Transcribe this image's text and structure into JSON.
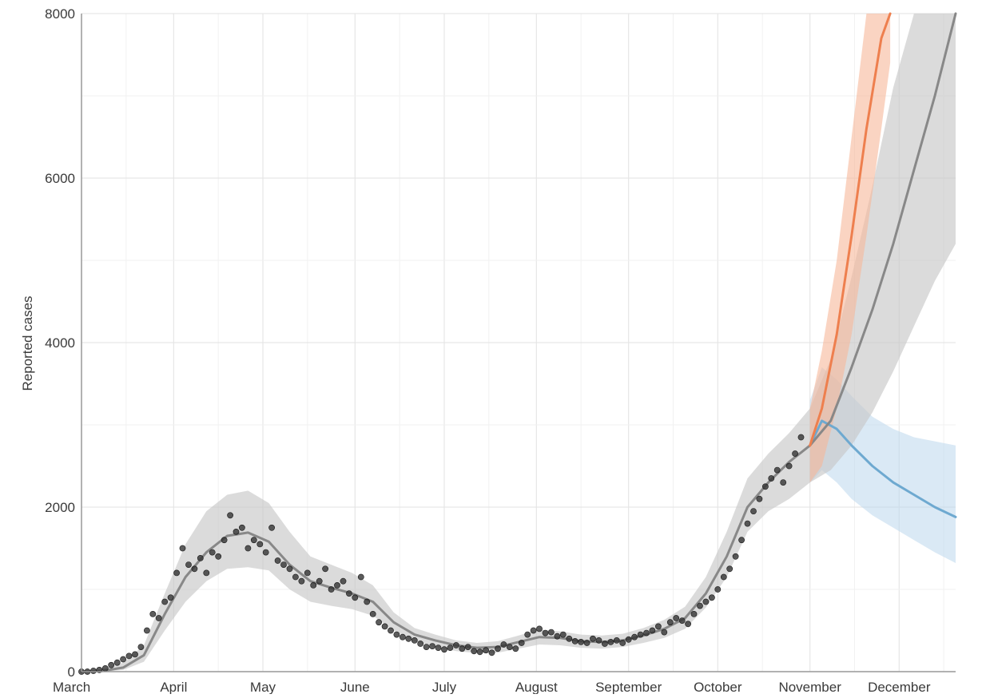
{
  "chart_data": {
    "type": "line",
    "title": "",
    "xlabel": "",
    "ylabel": "Reported cases",
    "ylim": [
      0,
      8000
    ],
    "xlim": [
      "2020-03-01",
      "2020-12-20"
    ],
    "grid": true,
    "legend": "none",
    "x_ticks": [
      "March",
      "April",
      "May",
      "June",
      "July",
      "August",
      "September",
      "October",
      "November",
      "December"
    ],
    "y_ticks": [
      "0",
      "2000",
      "4000",
      "6000",
      "8000"
    ],
    "colors": {
      "observed_points": "#333333",
      "fit_line": "#888888",
      "fit_band": "#c8c8c8",
      "high_scenario": "#ee7f4e",
      "high_band": "#f6b89a",
      "low_scenario": "#6ea9d0",
      "low_band": "#bcd7ec",
      "grid": "#e6e6e6",
      "axis": "#9a9a9a"
    },
    "series": [
      {
        "role": "fit",
        "x": [
          "2020-03-01",
          "2020-03-08",
          "2020-03-15",
          "2020-03-22",
          "2020-03-29",
          "2020-04-05",
          "2020-04-12",
          "2020-04-19",
          "2020-04-26",
          "2020-05-03",
          "2020-05-10",
          "2020-05-17",
          "2020-05-24",
          "2020-05-31",
          "2020-06-07",
          "2020-06-14",
          "2020-06-21",
          "2020-06-28",
          "2020-07-05",
          "2020-07-12",
          "2020-07-19",
          "2020-07-26",
          "2020-08-02",
          "2020-08-09",
          "2020-08-16",
          "2020-08-23",
          "2020-08-30",
          "2020-09-06",
          "2020-09-13",
          "2020-09-20",
          "2020-09-27",
          "2020-10-04",
          "2020-10-11",
          "2020-10-18",
          "2020-10-25",
          "2020-11-01",
          "2020-11-08",
          "2020-11-15",
          "2020-11-22",
          "2020-11-29",
          "2020-12-06",
          "2020-12-13",
          "2020-12-20"
        ],
        "y": [
          0,
          8,
          50,
          200,
          700,
          1150,
          1450,
          1650,
          1690,
          1580,
          1300,
          1100,
          1020,
          950,
          850,
          600,
          450,
          380,
          320,
          290,
          300,
          360,
          420,
          410,
          370,
          360,
          380,
          440,
          520,
          650,
          950,
          1400,
          2000,
          2300,
          2550,
          2750,
          3050,
          3700,
          4400,
          5200,
          6100,
          7000,
          8000
        ],
        "lower": [
          0,
          0,
          20,
          120,
          500,
          850,
          1100,
          1250,
          1270,
          1230,
          1000,
          850,
          800,
          760,
          680,
          500,
          370,
          300,
          250,
          225,
          230,
          280,
          330,
          320,
          290,
          280,
          300,
          350,
          410,
          520,
          780,
          1150,
          1700,
          1950,
          2100,
          2300,
          2450,
          2750,
          3150,
          3650,
          4200,
          4750,
          5200
        ],
        "upper": [
          10,
          30,
          110,
          320,
          950,
          1550,
          1950,
          2150,
          2200,
          2050,
          1700,
          1400,
          1300,
          1200,
          1050,
          720,
          530,
          450,
          380,
          350,
          370,
          440,
          510,
          490,
          450,
          440,
          460,
          530,
          630,
          790,
          1150,
          1700,
          2350,
          2650,
          2900,
          3200,
          3800,
          4800,
          5900,
          7100,
          8000,
          8000,
          8000
        ]
      },
      {
        "role": "scenario-high",
        "x": [
          "2020-11-01",
          "2020-11-05",
          "2020-11-10",
          "2020-11-15",
          "2020-11-20",
          "2020-11-25",
          "2020-11-28"
        ],
        "y": [
          2750,
          3200,
          4100,
          5300,
          6600,
          7700,
          8000
        ],
        "lower": [
          2300,
          2500,
          3200,
          4100,
          5300,
          6600,
          7400
        ],
        "upper": [
          3200,
          3900,
          5000,
          6500,
          8000,
          8000,
          8000
        ]
      },
      {
        "role": "scenario-low",
        "x": [
          "2020-11-01",
          "2020-11-05",
          "2020-11-10",
          "2020-11-15",
          "2020-11-22",
          "2020-11-29",
          "2020-12-06",
          "2020-12-13",
          "2020-12-20"
        ],
        "y": [
          2750,
          3050,
          2950,
          2750,
          2500,
          2300,
          2150,
          2000,
          1880
        ],
        "lower": [
          2300,
          2450,
          2300,
          2100,
          1900,
          1750,
          1600,
          1450,
          1320
        ],
        "upper": [
          3300,
          3700,
          3550,
          3350,
          3100,
          2950,
          2850,
          2800,
          2750
        ]
      }
    ],
    "points": {
      "x": [
        "2020-03-01",
        "2020-03-03",
        "2020-03-05",
        "2020-03-07",
        "2020-03-09",
        "2020-03-11",
        "2020-03-13",
        "2020-03-15",
        "2020-03-17",
        "2020-03-19",
        "2020-03-21",
        "2020-03-23",
        "2020-03-25",
        "2020-03-27",
        "2020-03-29",
        "2020-03-31",
        "2020-04-02",
        "2020-04-04",
        "2020-04-06",
        "2020-04-08",
        "2020-04-10",
        "2020-04-12",
        "2020-04-14",
        "2020-04-16",
        "2020-04-18",
        "2020-04-20",
        "2020-04-22",
        "2020-04-24",
        "2020-04-26",
        "2020-04-28",
        "2020-04-30",
        "2020-05-02",
        "2020-05-04",
        "2020-05-06",
        "2020-05-08",
        "2020-05-10",
        "2020-05-12",
        "2020-05-14",
        "2020-05-16",
        "2020-05-18",
        "2020-05-20",
        "2020-05-22",
        "2020-05-24",
        "2020-05-26",
        "2020-05-28",
        "2020-05-30",
        "2020-06-01",
        "2020-06-03",
        "2020-06-05",
        "2020-06-07",
        "2020-06-09",
        "2020-06-11",
        "2020-06-13",
        "2020-06-15",
        "2020-06-17",
        "2020-06-19",
        "2020-06-21",
        "2020-06-23",
        "2020-06-25",
        "2020-06-27",
        "2020-06-29",
        "2020-07-01",
        "2020-07-03",
        "2020-07-05",
        "2020-07-07",
        "2020-07-09",
        "2020-07-11",
        "2020-07-13",
        "2020-07-15",
        "2020-07-17",
        "2020-07-19",
        "2020-07-21",
        "2020-07-23",
        "2020-07-25",
        "2020-07-27",
        "2020-07-29",
        "2020-07-31",
        "2020-08-02",
        "2020-08-04",
        "2020-08-06",
        "2020-08-08",
        "2020-08-10",
        "2020-08-12",
        "2020-08-14",
        "2020-08-16",
        "2020-08-18",
        "2020-08-20",
        "2020-08-22",
        "2020-08-24",
        "2020-08-26",
        "2020-08-28",
        "2020-08-30",
        "2020-09-01",
        "2020-09-03",
        "2020-09-05",
        "2020-09-07",
        "2020-09-09",
        "2020-09-11",
        "2020-09-13",
        "2020-09-15",
        "2020-09-17",
        "2020-09-19",
        "2020-09-21",
        "2020-09-23",
        "2020-09-25",
        "2020-09-27",
        "2020-09-29",
        "2020-10-01",
        "2020-10-03",
        "2020-10-05",
        "2020-10-07",
        "2020-10-09",
        "2020-10-11",
        "2020-10-13",
        "2020-10-15",
        "2020-10-17",
        "2020-10-19",
        "2020-10-21",
        "2020-10-23",
        "2020-10-25",
        "2020-10-27",
        "2020-10-29"
      ],
      "y": [
        0,
        0,
        10,
        20,
        40,
        80,
        110,
        150,
        190,
        210,
        300,
        500,
        700,
        650,
        850,
        900,
        1200,
        1500,
        1300,
        1250,
        1380,
        1200,
        1450,
        1400,
        1600,
        1900,
        1700,
        1750,
        1500,
        1600,
        1550,
        1450,
        1750,
        1350,
        1300,
        1250,
        1150,
        1100,
        1200,
        1050,
        1100,
        1250,
        1000,
        1050,
        1100,
        950,
        900,
        1150,
        850,
        700,
        600,
        550,
        500,
        450,
        420,
        400,
        380,
        340,
        300,
        310,
        290,
        270,
        290,
        320,
        280,
        300,
        250,
        240,
        260,
        230,
        280,
        330,
        300,
        280,
        350,
        450,
        500,
        520,
        470,
        480,
        430,
        450,
        400,
        370,
        360,
        350,
        400,
        380,
        340,
        360,
        380,
        350,
        390,
        420,
        450,
        470,
        500,
        550,
        480,
        600,
        650,
        620,
        580,
        700,
        800,
        850,
        900,
        1000,
        1150,
        1250,
        1400,
        1600,
        1800,
        1950,
        2100,
        2250,
        2350,
        2450,
        2300,
        2500,
        2650,
        2850
      ]
    }
  }
}
